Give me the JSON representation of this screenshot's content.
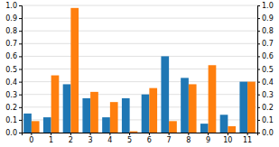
{
  "chart_data": {
    "type": "bar",
    "categories": [
      "0",
      "1",
      "2",
      "3",
      "4",
      "5",
      "6",
      "7",
      "8",
      "9",
      "10",
      "11"
    ],
    "series": [
      {
        "color": "#1f77b4",
        "values": [
          0.15,
          0.12,
          0.38,
          0.27,
          0.12,
          0.27,
          0.3,
          0.6,
          0.43,
          0.07,
          0.14,
          0.4
        ]
      },
      {
        "color": "#ff7f0e",
        "values": [
          0.09,
          0.45,
          0.98,
          0.32,
          0.24,
          0.01,
          0.35,
          0.09,
          0.38,
          0.53,
          0.05,
          0.4
        ]
      }
    ],
    "ylim": [
      0.0,
      1.0
    ],
    "yticks": [
      {
        "value": 0.0,
        "label": "0.0"
      },
      0.1,
      0.2,
      0.3,
      0.4,
      0.5,
      0.6,
      0.7,
      0.8,
      0.9,
      {
        "value": 1.0,
        "label": "1.0"
      }
    ],
    "y2lim": [
      0.0,
      1.0
    ],
    "y2ticks": [
      {
        "value": 0.0,
        "label": "0.0"
      },
      0.1,
      0.2,
      0.3,
      0.4,
      0.5,
      0.6,
      0.7,
      0.8,
      0.9,
      {
        "value": 1.0,
        "label": "1.0"
      }
    ],
    "grid": true
  }
}
